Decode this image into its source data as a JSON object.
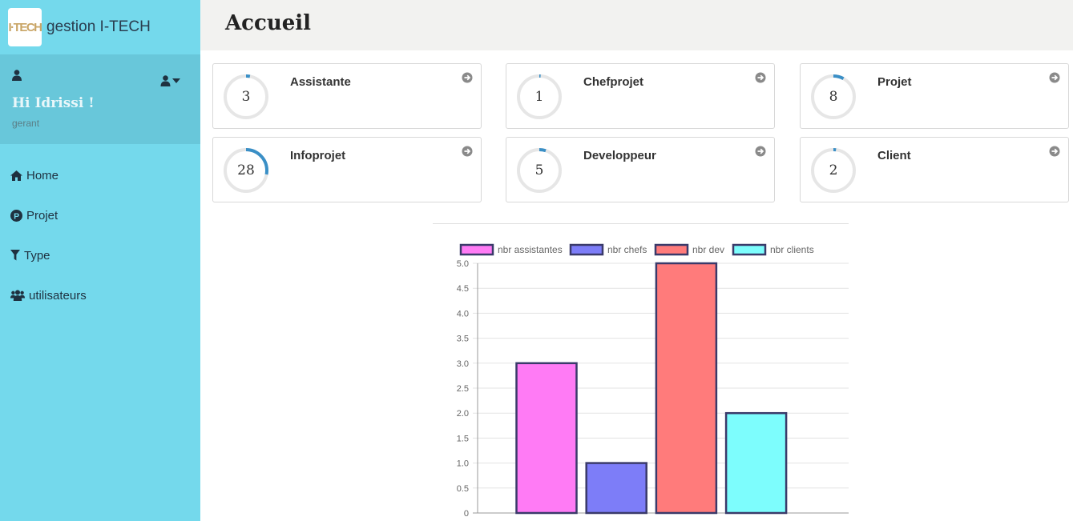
{
  "brand": {
    "logo_text": "I·TECH",
    "title": "gestion I-TECH"
  },
  "profile": {
    "greeting": "Hi Idrissi !",
    "role": "gerant"
  },
  "nav": [
    {
      "label": "Home",
      "icon": "home-icon"
    },
    {
      "label": "Projet",
      "icon": "p-circle-icon"
    },
    {
      "label": "Type",
      "icon": "filter-icon"
    },
    {
      "label": "utilisateurs",
      "icon": "users-icon"
    }
  ],
  "header": {
    "title": "Accueil"
  },
  "cards": [
    {
      "label": "Assistante",
      "value": "3",
      "progress": 0.03
    },
    {
      "label": "Chefprojet",
      "value": "1",
      "progress": 0.01
    },
    {
      "label": "Projet",
      "value": "8",
      "progress": 0.08
    },
    {
      "label": "Infoprojet",
      "value": "28",
      "progress": 0.28
    },
    {
      "label": "Developpeur",
      "value": "5",
      "progress": 0.05
    },
    {
      "label": "Client",
      "value": "2",
      "progress": 0.02
    }
  ],
  "colors": {
    "ring_track": "#e6e6e6",
    "ring_fill": "#3a8fc6",
    "sidebar": "#74d9ec"
  },
  "chart_data": {
    "type": "bar",
    "categories": [
      "nbr assistantes",
      "nbr chefs",
      "nbr dev",
      "nbr clients"
    ],
    "values": [
      3,
      1,
      5,
      2
    ],
    "colors": [
      "#ff7bf5",
      "#7d7df8",
      "#ff7b7b",
      "#7dfdfd"
    ],
    "border_color": "#3a3a6a",
    "legend": [
      "nbr assistantes",
      "nbr chefs",
      "nbr dev",
      "nbr clients"
    ],
    "legend_position": "top",
    "yticks": [
      "0",
      "0.5",
      "1.0",
      "1.5",
      "2.0",
      "2.5",
      "3.0",
      "3.5",
      "4.0",
      "4.5",
      "5.0"
    ],
    "ylim": [
      0,
      5
    ],
    "grid": true
  }
}
